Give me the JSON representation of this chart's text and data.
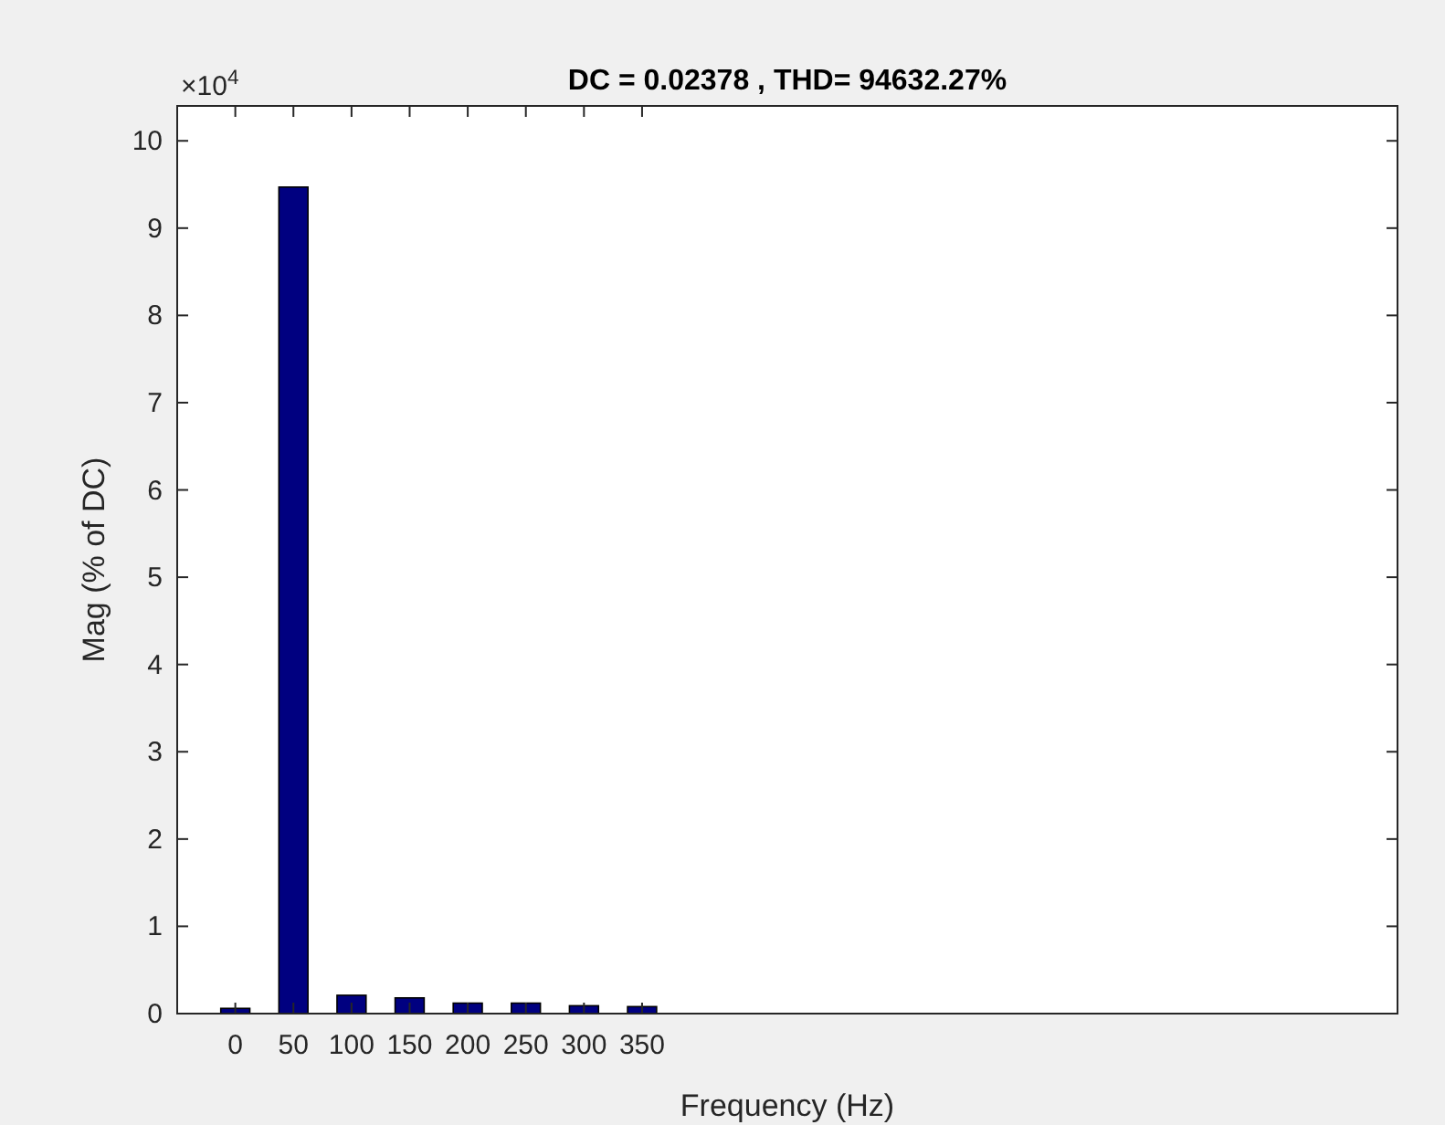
{
  "chart_data": {
    "type": "bar",
    "title": "DC = 0.02378 , THD= 94632.27%",
    "xlabel": "Frequency (Hz)",
    "ylabel": "Mag (% of DC)",
    "x": [
      0,
      50,
      100,
      150,
      200,
      250,
      300,
      350
    ],
    "values": [
      0.06,
      9.47,
      0.21,
      0.18,
      0.12,
      0.12,
      0.09,
      0.08
    ],
    "color": "#000080",
    "xlim": [
      -50,
      1000
    ],
    "xticks": [
      0,
      50,
      100,
      150,
      200,
      250,
      300,
      350
    ],
    "ylim": [
      0,
      10.4
    ],
    "yticks": [
      0,
      1,
      2,
      3,
      4,
      5,
      6,
      7,
      8,
      9,
      10
    ],
    "annotations": [
      "×10$^{4}$"
    ],
    "grid": false
  }
}
